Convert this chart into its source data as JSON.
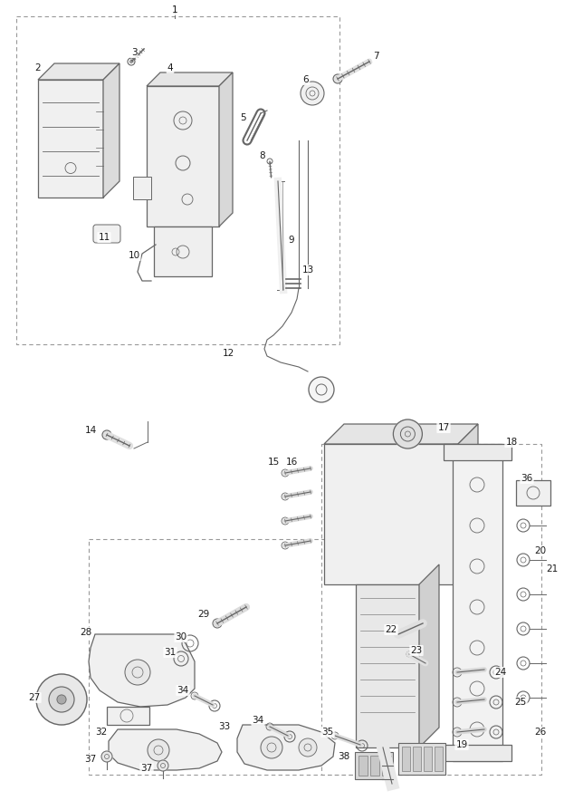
{
  "background_color": "#ffffff",
  "line_color": "#666666",
  "fig_width": 6.23,
  "fig_height": 8.94,
  "dpi": 100
}
